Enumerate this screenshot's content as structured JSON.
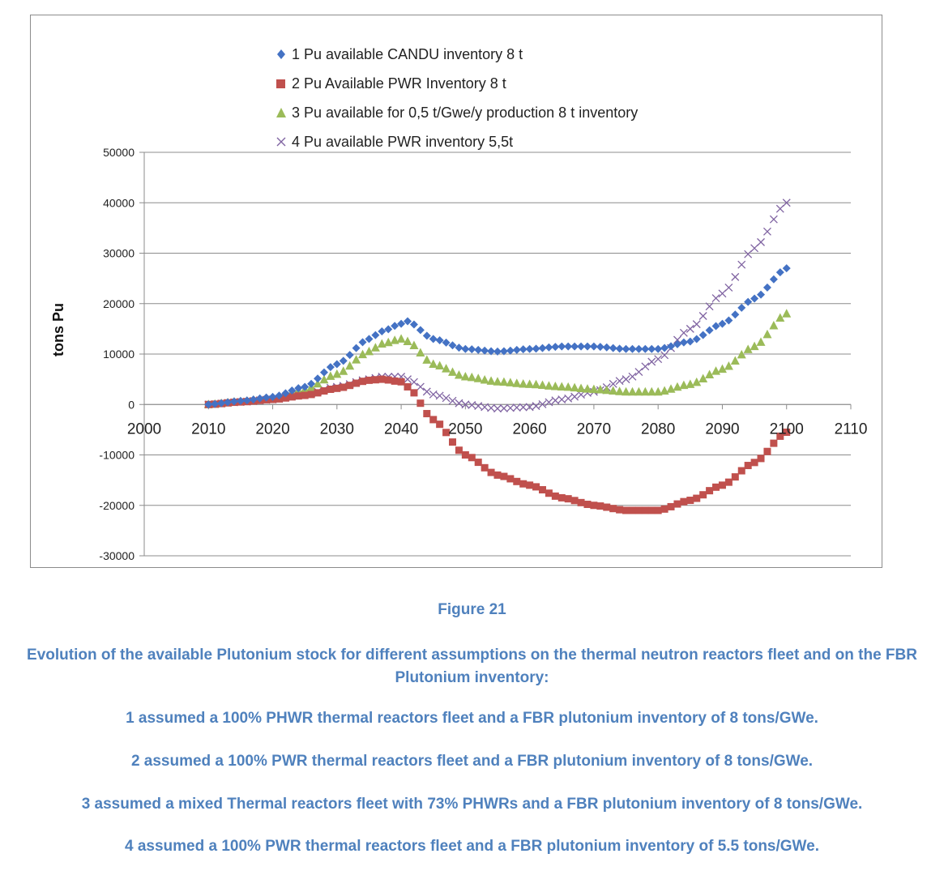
{
  "figure_label": "Figure 21",
  "caption": "Evolution of the available Plutonium stock for different assumptions on the thermal neutron reactors fleet and on the FBR Plutonium inventory:",
  "notes": [
    "1 assumed a 100% PHWR thermal reactors fleet and a FBR plutonium inventory of 8 tons/GWe.",
    "2 assumed a 100% PWR thermal reactors fleet and a FBR plutonium inventory of 8 tons/GWe.",
    "3 assumed a mixed Thermal reactors fleet with 73% PHWRs and a FBR plutonium inventory of 8 tons/GWe.",
    "4  assumed a 100% PWR thermal reactors fleet and a FBR plutonium inventory of 5.5 tons/GWe."
  ],
  "chart_data": {
    "type": "scatter",
    "title": "",
    "xlabel": "",
    "ylabel": "tons Pu",
    "xlim": [
      2000,
      2110
    ],
    "ylim": [
      -30000,
      50000
    ],
    "x_ticks": [
      2000,
      2010,
      2020,
      2030,
      2040,
      2050,
      2060,
      2070,
      2080,
      2090,
      2100,
      2110
    ],
    "y_ticks": [
      50000,
      40000,
      30000,
      20000,
      10000,
      0,
      -10000,
      -20000,
      -30000
    ],
    "grid": "horizontal",
    "legend_position": "top",
    "x_anchor_years": [
      2010,
      2015,
      2020,
      2025,
      2030,
      2035,
      2037,
      2040,
      2041,
      2045,
      2050,
      2055,
      2060,
      2065,
      2070,
      2075,
      2080,
      2085,
      2090,
      2095,
      2100
    ],
    "series": [
      {
        "name": "1 Pu available CANDU inventory 8 t",
        "marker": "diamond",
        "color": "#4472c4",
        "values": [
          0,
          700,
          1500,
          3500,
          8000,
          13000,
          14500,
          16000,
          16500,
          13000,
          11000,
          10500,
          11000,
          11500,
          11500,
          11000,
          11000,
          12500,
          16000,
          21000,
          27000
        ]
      },
      {
        "name": "2 Pu Available PWR Inventory  8 t",
        "marker": "square",
        "color": "#c0504d",
        "values": [
          0,
          500,
          1000,
          1800,
          3200,
          4800,
          5000,
          4500,
          3500,
          -3000,
          -10000,
          -14000,
          -16000,
          -18500,
          -20000,
          -21000,
          -21000,
          -19000,
          -16000,
          -11500,
          -5500
        ]
      },
      {
        "name": "3 Pu available for 0,5 t/Gwe/y production 8 t inventory",
        "marker": "triangle",
        "color": "#9bbb59",
        "values": [
          0,
          600,
          1300,
          3000,
          6000,
          10500,
          12000,
          13000,
          12500,
          8000,
          5500,
          4500,
          4000,
          3500,
          3000,
          2500,
          2500,
          4000,
          7000,
          11500,
          18000
        ]
      },
      {
        "name": "4 Pu available PWR inventory 5,5t",
        "marker": "x",
        "color": "#8064a2",
        "values": [
          0,
          500,
          1000,
          2000,
          3500,
          5000,
          5500,
          5500,
          5000,
          2000,
          0,
          -800,
          -500,
          1000,
          2500,
          5000,
          9000,
          15000,
          22000,
          31000,
          40000
        ]
      }
    ]
  }
}
